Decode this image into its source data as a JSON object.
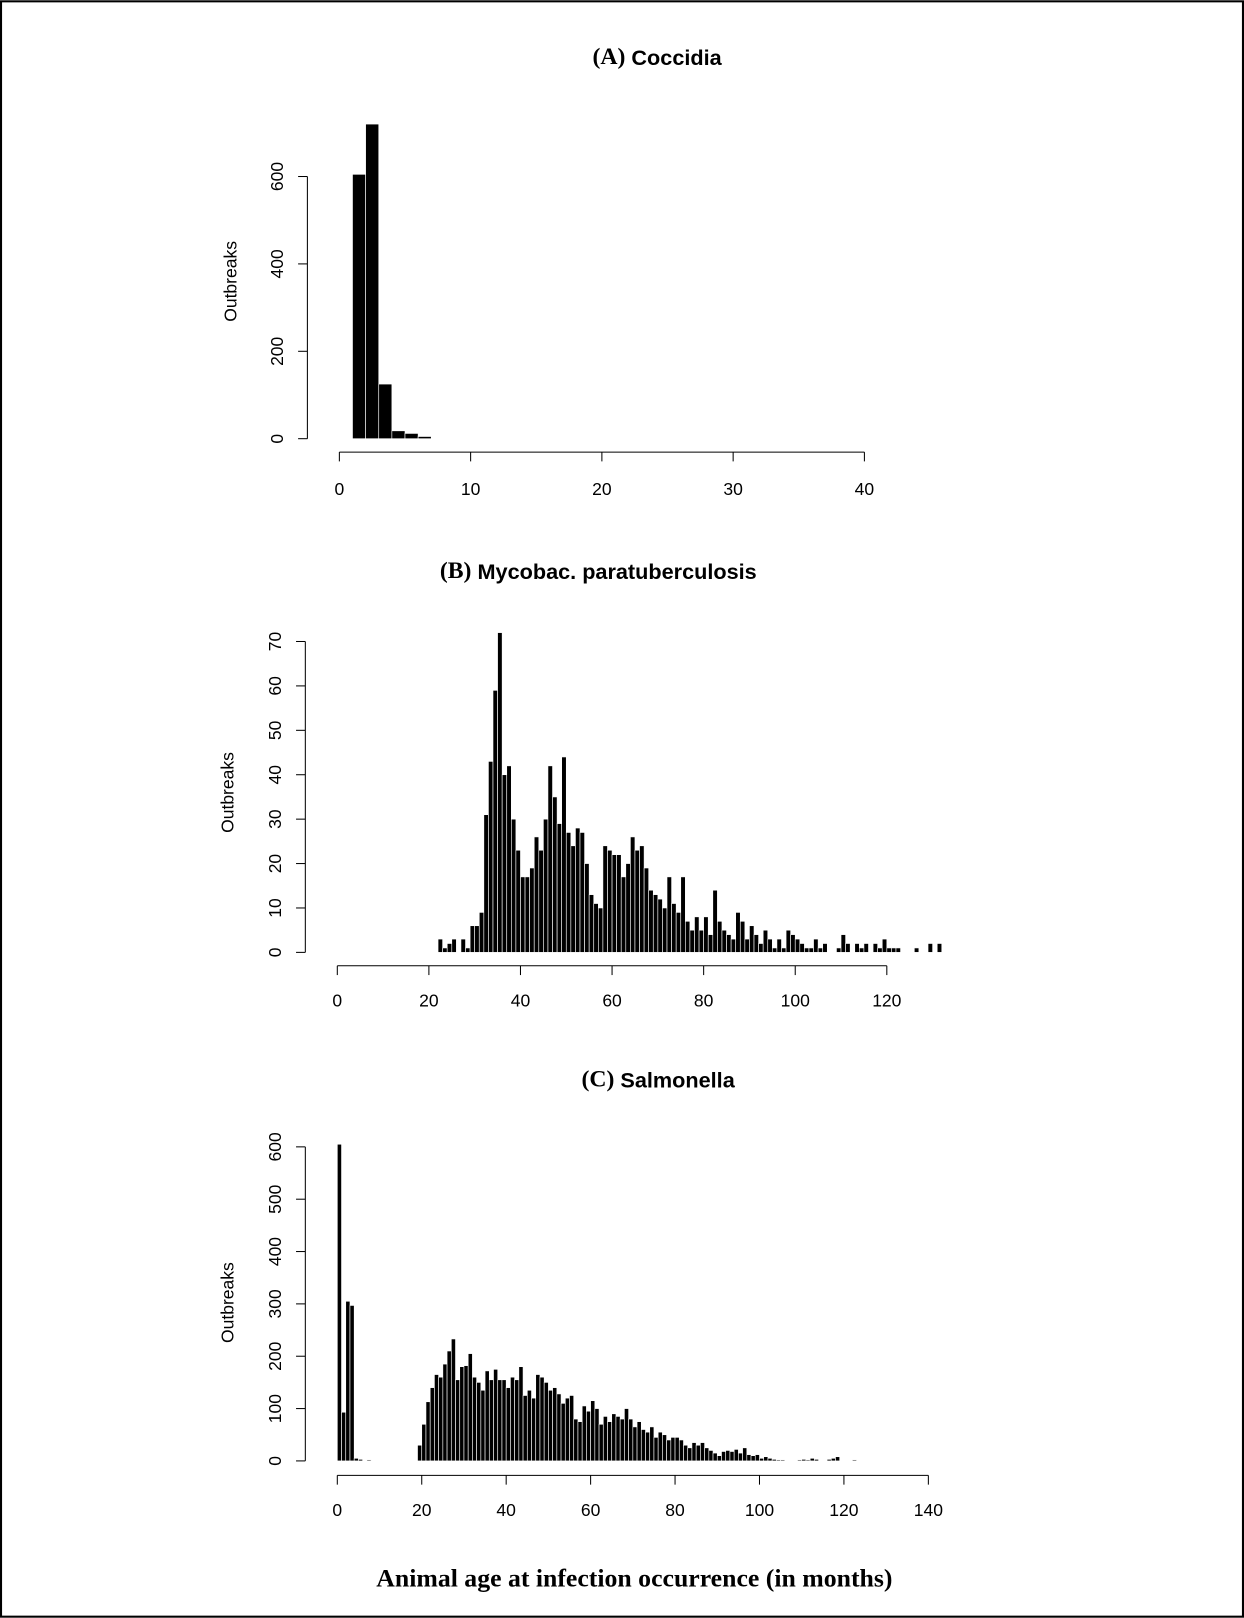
{
  "xlabel": "Animal age at infection occurrence (in months)",
  "chart_data": [
    {
      "type": "histogram",
      "panel": "(A)",
      "title": "Coccidia",
      "ylabel": "Outbreaks",
      "color": "#000000",
      "bins": [
        1,
        2,
        3,
        4,
        5,
        6,
        7
      ],
      "counts": [
        605,
        720,
        125,
        18,
        12,
        5
      ],
      "xlim": [
        0,
        40
      ],
      "xticks": [
        0,
        10,
        20,
        30,
        40
      ],
      "ylim": [
        0,
        720
      ],
      "yticks": [
        0,
        200,
        400,
        600
      ]
    },
    {
      "type": "histogram",
      "panel": "(B)",
      "title": "Mycobac. paratuberculosis",
      "ylabel": "Outbreaks",
      "color": "#000000",
      "bins": [
        22,
        23,
        24,
        25,
        26,
        27,
        28,
        29,
        30,
        31,
        32,
        33,
        34,
        35,
        36,
        37,
        38,
        39,
        40,
        41,
        42,
        43,
        44,
        45,
        46,
        47,
        48,
        49,
        50,
        51,
        52,
        53,
        54,
        55,
        56,
        57,
        58,
        59,
        60,
        61,
        62,
        63,
        64,
        65,
        66,
        67,
        68,
        69,
        70,
        71,
        72,
        73,
        74,
        75,
        76,
        77,
        78,
        79,
        80,
        81,
        82,
        83,
        84,
        85,
        86,
        87,
        88,
        89,
        90,
        91,
        92,
        93,
        94,
        95,
        96,
        97,
        98,
        99,
        100,
        101,
        102,
        103,
        104,
        105,
        106,
        107,
        108,
        109,
        110,
        111,
        112,
        113,
        114,
        115,
        116,
        117,
        118,
        119,
        120,
        121,
        122,
        123,
        124,
        125,
        126,
        127,
        128,
        129,
        130,
        131,
        132
      ],
      "counts": [
        3,
        1,
        2,
        3,
        0,
        3,
        1,
        6,
        6,
        9,
        31,
        43,
        59,
        72,
        40,
        42,
        30,
        23,
        17,
        17,
        19,
        26,
        23,
        30,
        42,
        35,
        29,
        44,
        27,
        24,
        28,
        27,
        20,
        13,
        11,
        10,
        24,
        23,
        22,
        22,
        17,
        20,
        26,
        23,
        24,
        19,
        14,
        13,
        12,
        10,
        17,
        11,
        9,
        17,
        7,
        5,
        8,
        5,
        8,
        4,
        14,
        7,
        5,
        4,
        3,
        9,
        7,
        3,
        6,
        4,
        2,
        5,
        3,
        1,
        3,
        1,
        5,
        4,
        3,
        2,
        1,
        1,
        3,
        1,
        2,
        0,
        0,
        1,
        4,
        2,
        0,
        2,
        1,
        2,
        0,
        2,
        1,
        3,
        1,
        1,
        1,
        0,
        0,
        0,
        1,
        0,
        0,
        2,
        0,
        2
      ],
      "xlim": [
        0,
        132
      ],
      "xticks": [
        0,
        20,
        40,
        60,
        80,
        100,
        120
      ],
      "ylim": [
        0,
        72
      ],
      "yticks": [
        0,
        10,
        20,
        30,
        40,
        50,
        60,
        70
      ]
    },
    {
      "type": "histogram",
      "panel": "(C)",
      "title": "Salmonella",
      "ylabel": "Outbreaks",
      "color": "#000000",
      "bins": [
        0,
        1,
        2,
        3,
        4,
        5,
        6,
        7,
        8,
        9,
        10,
        11,
        12,
        13,
        14,
        15,
        16,
        17,
        18,
        19,
        20,
        21,
        22,
        23,
        24,
        25,
        26,
        27,
        28,
        29,
        30,
        31,
        32,
        33,
        34,
        35,
        36,
        37,
        38,
        39,
        40,
        41,
        42,
        43,
        44,
        45,
        46,
        47,
        48,
        49,
        50,
        51,
        52,
        53,
        54,
        55,
        56,
        57,
        58,
        59,
        60,
        61,
        62,
        63,
        64,
        65,
        66,
        67,
        68,
        69,
        70,
        71,
        72,
        73,
        74,
        75,
        76,
        77,
        78,
        79,
        80,
        81,
        82,
        83,
        84,
        85,
        86,
        87,
        88,
        89,
        90,
        91,
        92,
        93,
        94,
        95,
        96,
        97,
        98,
        99,
        100,
        101,
        102,
        103,
        104,
        105,
        106,
        107,
        108,
        109,
        110,
        111,
        112,
        113,
        114,
        115,
        116,
        117,
        118,
        119,
        120,
        121,
        122,
        123
      ],
      "counts": [
        605,
        93,
        305,
        297,
        5,
        3,
        0,
        2,
        0,
        0,
        0,
        0,
        0,
        0,
        0,
        0,
        0,
        0,
        0,
        30,
        70,
        113,
        140,
        165,
        160,
        185,
        210,
        233,
        155,
        180,
        182,
        205,
        160,
        150,
        135,
        172,
        155,
        175,
        155,
        155,
        140,
        160,
        155,
        180,
        125,
        135,
        120,
        165,
        160,
        150,
        135,
        140,
        128,
        110,
        120,
        125,
        80,
        75,
        105,
        95,
        115,
        100,
        70,
        85,
        75,
        90,
        85,
        80,
        100,
        80,
        65,
        75,
        60,
        55,
        65,
        45,
        55,
        50,
        40,
        45,
        45,
        40,
        30,
        25,
        35,
        30,
        35,
        25,
        20,
        15,
        10,
        18,
        20,
        18,
        22,
        15,
        25,
        12,
        10,
        12,
        5,
        8,
        5,
        3,
        2,
        2,
        0,
        0,
        0,
        2,
        3,
        2,
        5,
        3,
        0,
        0,
        3,
        5,
        8,
        0,
        0,
        0,
        2
      ],
      "xlim": [
        0,
        140
      ],
      "xticks": [
        0,
        20,
        40,
        60,
        80,
        100,
        120,
        140
      ],
      "ylim": [
        0,
        605
      ],
      "yticks": [
        0,
        100,
        200,
        300,
        400,
        500,
        600
      ]
    }
  ]
}
